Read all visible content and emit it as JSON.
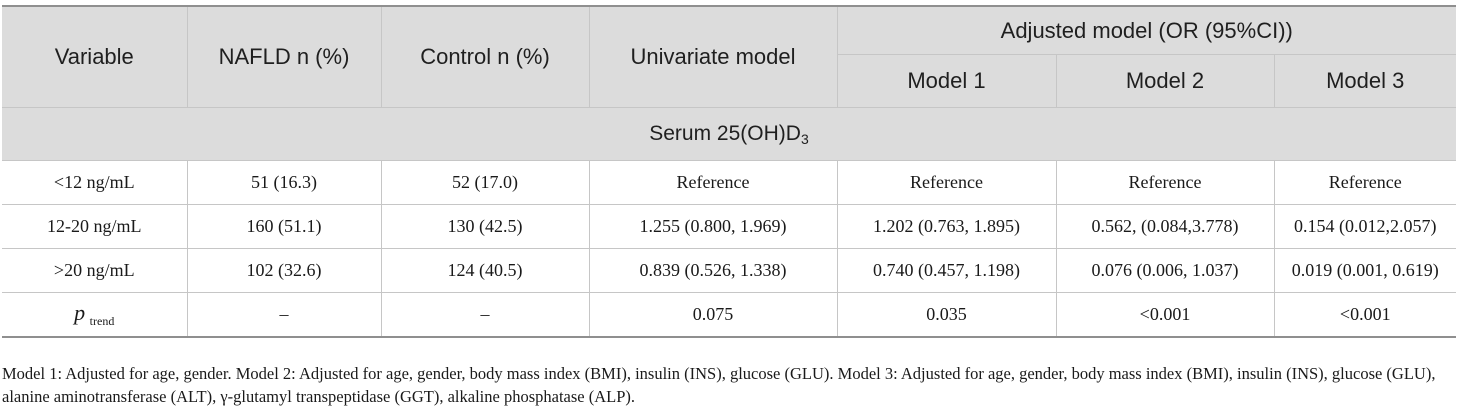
{
  "table": {
    "header": {
      "variable": "Variable",
      "nafld": "NAFLD n (%)",
      "control": "Control n (%)",
      "univariate": "Univariate model",
      "adjusted_group": "Adjusted model (OR (95%CI))",
      "model1": "Model 1",
      "model2": "Model 2",
      "model3": "Model 3"
    },
    "section": {
      "label_prefix": "Serum 25(OH)D",
      "label_subscript": "3"
    },
    "rows": [
      {
        "variable": "<12 ng/mL",
        "nafld": "51 (16.3)",
        "control": "52 (17.0)",
        "univariate": "Reference",
        "model1": "Reference",
        "model2": "Reference",
        "model3": "Reference"
      },
      {
        "variable": "12-20 ng/mL",
        "nafld": "160 (51.1)",
        "control": "130 (42.5)",
        "univariate": "1.255 (0.800, 1.969)",
        "model1": "1.202 (0.763, 1.895)",
        "model2": "0.562, (0.084,3.778)",
        "model3": "0.154 (0.012,2.057)"
      },
      {
        "variable": ">20 ng/mL",
        "nafld": "102 (32.6)",
        "control": "124 (40.5)",
        "univariate": "0.839 (0.526, 1.338)",
        "model1": "0.740 (0.457, 1.198)",
        "model2": "0.076 (0.006, 1.037)",
        "model3": "0.019 (0.001, 0.619)"
      }
    ],
    "trend": {
      "label_main": "p",
      "label_sub": "trend",
      "nafld": "–",
      "control": "–",
      "univariate": "0.075",
      "model1": "0.035",
      "model2": "<0.001",
      "model3": "<0.001"
    }
  },
  "footnote": "Model 1: Adjusted for age, gender. Model 2: Adjusted for age, gender, body mass index (BMI), insulin (INS), glucose (GLU). Model 3: Adjusted for age, gender, body mass index (BMI), insulin (INS), glucose (GLU), alanine aminotransferase (ALT), γ-glutamyl transpeptidase (GGT), alkaline phosphatase (ALP).",
  "colors": {
    "header_bg": "#dcdcdc",
    "rule": "#8f8f8f",
    "grid": "#c6c6c6"
  }
}
